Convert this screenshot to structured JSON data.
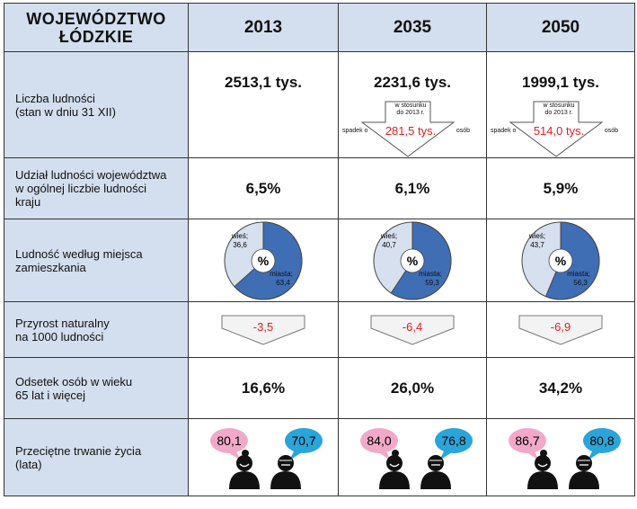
{
  "header": {
    "region_line1": "WOJEWÓDZTWO",
    "region_line2": "ŁÓDZKIE",
    "years": [
      "2013",
      "2035",
      "2050"
    ]
  },
  "rows": {
    "population": {
      "label_line1": "Liczba ludności",
      "label_line2": "(stan w dniu 31 XII)",
      "values": [
        "2513,1 tys.",
        "2231,6 tys.",
        "1999,1 tys."
      ],
      "decline_caption": "w stosunku do 2013 r.",
      "decline_prefix": "spadek o",
      "decline_suffix": "osób",
      "declines": [
        "281,5 tys.",
        "514,0 tys."
      ]
    },
    "share": {
      "label_line1": "Udział ludności województwa",
      "label_line2": "w ogólnej liczbie ludności",
      "label_line3": "kraju",
      "values": [
        "6,5%",
        "6,1%",
        "5,9%"
      ]
    },
    "residence": {
      "label_line1": "Ludność według miejsca",
      "label_line2": "zamieszkania",
      "center": "%",
      "rural_label": "wieś;",
      "urban_label": "miasta;",
      "pies": [
        {
          "rural": "36,6",
          "urban": "63,4",
          "urban_share": 63.4
        },
        {
          "rural": "40,7",
          "urban": "59,3",
          "urban_share": 59.3
        },
        {
          "rural": "43,7",
          "urban": "56,3",
          "urban_share": 56.3
        }
      ]
    },
    "growth": {
      "label_line1": "Przyrost naturalny",
      "label_line2": "na 1000 ludności",
      "values": [
        "-3,5",
        "-6,4",
        "-6,9"
      ]
    },
    "elderly": {
      "label_line1": "Odsetek osób w wieku",
      "label_line2": "65 lat i więcej",
      "values": [
        "16,6%",
        "26,0%",
        "34,2%"
      ]
    },
    "life": {
      "label_line1": "Przeciętne trwanie życia",
      "label_line2": "(lata)",
      "female": [
        "80,1",
        "84,0",
        "86,7"
      ],
      "male": [
        "70,7",
        "76,8",
        "80,8"
      ]
    }
  },
  "colors": {
    "header_bg": "#d3dfee",
    "urban": "#3f6eb5",
    "rural": "#d6e0ef",
    "accent_red": "#e02020",
    "female_bubble": "#f2a9c9",
    "male_bubble": "#2aa5d9"
  }
}
